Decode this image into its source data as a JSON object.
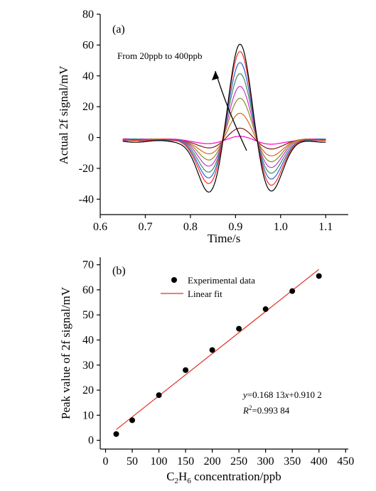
{
  "chart_data": [
    {
      "type": "line",
      "panel_label": "(a)",
      "xlabel": "Time/s",
      "ylabel": "Actual 2f signal/mV",
      "xlim": [
        0.6,
        1.15
      ],
      "ylim": [
        -50,
        80
      ],
      "xticks": [
        "0.6",
        "0.7",
        "0.8",
        "0.9",
        "1.0",
        "1.1"
      ],
      "yticks": [
        "-40",
        "-20",
        "0",
        "20",
        "40",
        "60",
        "80"
      ],
      "annotation": "From 20ppb to 400ppb",
      "grid": false,
      "series": [
        {
          "color": "#ff00cc",
          "peak": 2.5,
          "trough_left": -3,
          "trough_right": -3.5,
          "baseline": -1.5
        },
        {
          "color": "#7b1d1d",
          "peak": 8,
          "trough_left": -6,
          "trough_right": -6.5,
          "baseline": -1.5
        },
        {
          "color": "#d2691e",
          "peak": 18,
          "trough_left": -10,
          "trough_right": -11,
          "baseline": -1.5
        },
        {
          "color": "#8a8a2a",
          "peak": 28,
          "trough_left": -14,
          "trough_right": -15,
          "baseline": -1.5
        },
        {
          "color": "#cc33cc",
          "peak": 36,
          "trough_left": -18,
          "trough_right": -19,
          "baseline": -1.5
        },
        {
          "color": "#3b8f5a",
          "peak": 44.5,
          "trough_left": -22,
          "trough_right": -23,
          "baseline": -1.5
        },
        {
          "color": "#2f5fd8",
          "peak": 52,
          "trough_left": -26,
          "trough_right": -27,
          "baseline": -1.5
        },
        {
          "color": "#ff2a2a",
          "peak": 59.5,
          "trough_left": -30,
          "trough_right": -31,
          "baseline": -1.5
        },
        {
          "color": "#000000",
          "peak": 65.5,
          "trough_left": -35,
          "trough_right": -34,
          "baseline": -2.5
        }
      ]
    },
    {
      "type": "scatter",
      "panel_label": "(b)",
      "xlabel": "C2H6 concentration/ppb",
      "xlabel_parts": {
        "c": "C",
        "sub1": "2",
        "h": "H",
        "sub2": "6",
        "rest": " concentration/ppb"
      },
      "ylabel": "Peak value of 2f signal/mV",
      "xlim": [
        -10,
        455
      ],
      "ylim": [
        -3.5,
        73
      ],
      "xticks": [
        "0",
        "50",
        "100",
        "150",
        "200",
        "250",
        "300",
        "350",
        "400",
        "450"
      ],
      "yticks": [
        "0",
        "10",
        "20",
        "30",
        "40",
        "50",
        "60",
        "70"
      ],
      "legend": {
        "placement": "top-left",
        "experimental": "Experimental data",
        "fit": "Linear fit"
      },
      "points": {
        "x": [
          20,
          50,
          100,
          150,
          200,
          250,
          300,
          350,
          400
        ],
        "y": [
          2.5,
          8,
          18,
          28,
          36,
          44.5,
          52.3,
          59.5,
          65.5
        ]
      },
      "fit": {
        "slope": 0.16813,
        "intercept": 0.9102,
        "x_range": [
          20,
          400
        ],
        "color": "#e03020"
      },
      "equation": {
        "y_var": "y",
        "y_rest": "=0.168 13",
        "x_var": "x",
        "x_rest": "+0.910 2",
        "r_var": "R",
        "r_sup": "2",
        "r_rest": "=0.993 84"
      },
      "grid": false
    }
  ]
}
